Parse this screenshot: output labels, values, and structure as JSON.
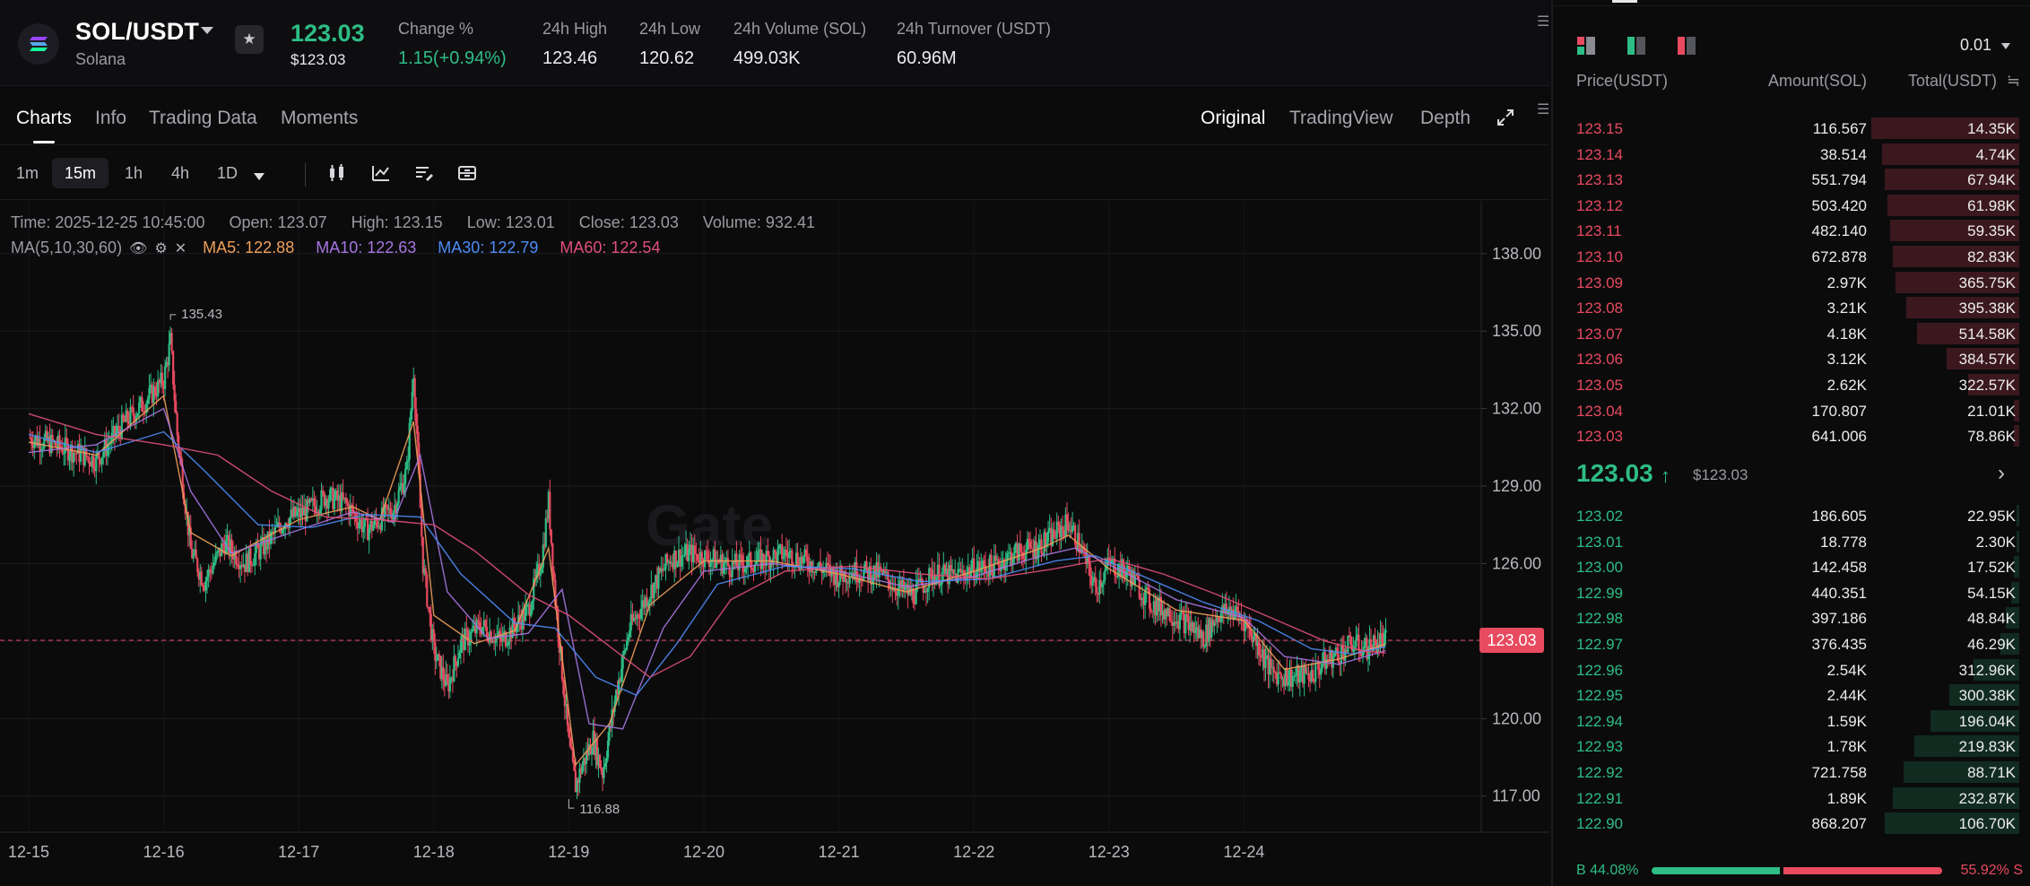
{
  "header": {
    "pair": "SOL/USDT",
    "pair_sub": "Solana",
    "last_price": "123.03",
    "last_price_usd": "$123.03",
    "stats": [
      {
        "label": "Change %",
        "value": "1.15(+0.94%)",
        "positive": true
      },
      {
        "label": "24h High",
        "value": "123.46"
      },
      {
        "label": "24h Low",
        "value": "120.62"
      },
      {
        "label": "24h Volume (SOL)",
        "value": "499.03K"
      },
      {
        "label": "24h Turnover (USDT)",
        "value": "60.96M"
      }
    ]
  },
  "tabs": {
    "left": [
      "Charts",
      "Info",
      "Trading Data",
      "Moments"
    ],
    "right": [
      "Original",
      "TradingView",
      "Depth"
    ],
    "active_left": "Charts",
    "active_right": "Original"
  },
  "toolbar": {
    "timeframes": [
      "1m",
      "15m",
      "1h",
      "4h",
      "1D"
    ],
    "active": "15m"
  },
  "chart_info": {
    "time": "Time: 2025-12-25 10:45:00",
    "open": "Open: 123.07",
    "high": "High: 123.15",
    "low": "Low: 123.01",
    "close": "Close: 123.03",
    "volume": "Volume: 932.41",
    "ma_label": "MA(5,10,30,60)",
    "ma5": "MA5: 122.88",
    "ma10": "MA10: 122.63",
    "ma30": "MA30: 122.79",
    "ma60": "MA60: 122.54",
    "high_marker": "135.43",
    "low_marker": "116.88",
    "current_price_tag": "123.03"
  },
  "colors": {
    "up": "#2ebd85",
    "down": "#e84a5f",
    "ma5": "#f0a05a",
    "ma10": "#a676e0",
    "ma30": "#4e8cf6",
    "ma60": "#e0507a"
  },
  "chart_data": {
    "type": "line",
    "x": [
      "12-15",
      "12-16",
      "12-17",
      "12-18",
      "12-19",
      "12-20",
      "12-21",
      "12-22",
      "12-23",
      "12-24"
    ],
    "ylim": [
      115.6,
      139.0
    ],
    "yticks": [
      "138.00",
      "135.00",
      "132.00",
      "129.00",
      "126.00",
      "123.00",
      "120.00",
      "117.00"
    ],
    "ytick_values": [
      138,
      135,
      132,
      129,
      126,
      123,
      120,
      117
    ],
    "current_price": 123.03,
    "series": [
      {
        "name": "Price",
        "values": [
          [
            0.0,
            130.9
          ],
          [
            0.25,
            130.5
          ],
          [
            0.5,
            130.0
          ],
          [
            0.7,
            131.4
          ],
          [
            0.85,
            132.2
          ],
          [
            1.0,
            133.1
          ],
          [
            1.05,
            134.6
          ],
          [
            1.1,
            131.0
          ],
          [
            1.2,
            126.5
          ],
          [
            1.3,
            125.3
          ],
          [
            1.45,
            126.8
          ],
          [
            1.6,
            126.0
          ],
          [
            1.75,
            126.7
          ],
          [
            1.9,
            127.7
          ],
          [
            2.05,
            128.0
          ],
          [
            2.2,
            128.6
          ],
          [
            2.35,
            128.3
          ],
          [
            2.5,
            127.3
          ],
          [
            2.7,
            128.1
          ],
          [
            2.8,
            129.6
          ],
          [
            2.85,
            133.5
          ],
          [
            2.92,
            126.0
          ],
          [
            3.0,
            122.6
          ],
          [
            3.1,
            121.2
          ],
          [
            3.2,
            122.9
          ],
          [
            3.35,
            123.6
          ],
          [
            3.5,
            123.0
          ],
          [
            3.7,
            124.2
          ],
          [
            3.8,
            126.2
          ],
          [
            3.85,
            128.4
          ],
          [
            3.9,
            124.6
          ],
          [
            4.0,
            119.0
          ],
          [
            4.05,
            117.4
          ],
          [
            4.1,
            118.2
          ],
          [
            4.18,
            119.2
          ],
          [
            4.25,
            117.9
          ],
          [
            4.35,
            121.0
          ],
          [
            4.45,
            123.5
          ],
          [
            4.6,
            124.9
          ],
          [
            4.75,
            126.2
          ],
          [
            4.9,
            126.4
          ],
          [
            5.05,
            126.2
          ],
          [
            5.2,
            125.9
          ],
          [
            5.4,
            126.1
          ],
          [
            5.6,
            126.4
          ],
          [
            5.8,
            126.0
          ],
          [
            6.0,
            125.5
          ],
          [
            6.1,
            125.7
          ],
          [
            6.3,
            125.6
          ],
          [
            6.45,
            125.0
          ],
          [
            6.55,
            124.8
          ],
          [
            6.7,
            125.6
          ],
          [
            6.85,
            125.5
          ],
          [
            7.0,
            125.8
          ],
          [
            7.15,
            125.9
          ],
          [
            7.3,
            126.4
          ],
          [
            7.45,
            126.6
          ],
          [
            7.55,
            126.9
          ],
          [
            7.7,
            127.6
          ],
          [
            7.8,
            126.5
          ],
          [
            7.9,
            125.0
          ],
          [
            8.0,
            126.0
          ],
          [
            8.15,
            125.6
          ],
          [
            8.3,
            124.5
          ],
          [
            8.45,
            124.1
          ],
          [
            8.6,
            123.6
          ],
          [
            8.7,
            123.1
          ],
          [
            8.8,
            124.0
          ],
          [
            8.9,
            124.2
          ],
          [
            9.0,
            123.8
          ],
          [
            9.1,
            122.9
          ],
          [
            9.2,
            121.8
          ],
          [
            9.35,
            121.6
          ],
          [
            9.5,
            121.7
          ],
          [
            9.6,
            122.2
          ],
          [
            9.7,
            122.5
          ],
          [
            9.8,
            122.9
          ],
          [
            9.9,
            122.7
          ],
          [
            10.0,
            123.0
          ],
          [
            10.05,
            123.03
          ]
        ]
      },
      {
        "name": "MA5",
        "values": [
          [
            0.0,
            130.7
          ],
          [
            0.5,
            130.2
          ],
          [
            1.0,
            132.5
          ],
          [
            1.2,
            127.2
          ],
          [
            1.5,
            126.3
          ],
          [
            2.0,
            127.7
          ],
          [
            2.4,
            128.2
          ],
          [
            2.6,
            127.7
          ],
          [
            2.85,
            131.5
          ],
          [
            3.0,
            124.0
          ],
          [
            3.3,
            122.9
          ],
          [
            3.6,
            123.4
          ],
          [
            3.85,
            126.6
          ],
          [
            4.05,
            118.2
          ],
          [
            4.3,
            119.8
          ],
          [
            4.6,
            124.4
          ],
          [
            5.0,
            126.1
          ],
          [
            5.5,
            126.1
          ],
          [
            6.0,
            125.6
          ],
          [
            6.5,
            124.9
          ],
          [
            7.0,
            125.7
          ],
          [
            7.5,
            126.6
          ],
          [
            7.7,
            127.1
          ],
          [
            8.0,
            125.8
          ],
          [
            8.5,
            124.2
          ],
          [
            9.0,
            123.8
          ],
          [
            9.3,
            121.9
          ],
          [
            9.7,
            122.3
          ],
          [
            10.05,
            122.88
          ]
        ]
      },
      {
        "name": "MA10",
        "values": [
          [
            0.0,
            130.3
          ],
          [
            0.5,
            130.6
          ],
          [
            1.0,
            132.0
          ],
          [
            1.2,
            128.8
          ],
          [
            1.5,
            126.4
          ],
          [
            2.0,
            127.3
          ],
          [
            2.4,
            128.0
          ],
          [
            2.7,
            127.6
          ],
          [
            2.9,
            130.2
          ],
          [
            3.1,
            124.9
          ],
          [
            3.4,
            123.1
          ],
          [
            3.7,
            123.3
          ],
          [
            3.95,
            125.0
          ],
          [
            4.15,
            119.8
          ],
          [
            4.4,
            119.6
          ],
          [
            4.7,
            123.5
          ],
          [
            5.0,
            125.7
          ],
          [
            5.5,
            126.0
          ],
          [
            6.0,
            125.7
          ],
          [
            6.5,
            125.1
          ],
          [
            7.0,
            125.5
          ],
          [
            7.5,
            126.3
          ],
          [
            7.75,
            126.6
          ],
          [
            8.1,
            125.7
          ],
          [
            8.5,
            124.6
          ],
          [
            9.0,
            123.9
          ],
          [
            9.3,
            122.4
          ],
          [
            9.7,
            122.1
          ],
          [
            10.05,
            122.63
          ]
        ]
      },
      {
        "name": "MA30",
        "values": [
          [
            0.0,
            131.0
          ],
          [
            0.5,
            130.3
          ],
          [
            1.0,
            131.1
          ],
          [
            1.3,
            129.6
          ],
          [
            1.7,
            127.5
          ],
          [
            2.1,
            127.4
          ],
          [
            2.5,
            127.9
          ],
          [
            2.9,
            127.8
          ],
          [
            3.2,
            125.6
          ],
          [
            3.6,
            123.7
          ],
          [
            3.9,
            123.5
          ],
          [
            4.2,
            121.6
          ],
          [
            4.5,
            120.9
          ],
          [
            4.8,
            122.9
          ],
          [
            5.1,
            125.2
          ],
          [
            5.6,
            125.9
          ],
          [
            6.1,
            125.8
          ],
          [
            6.6,
            125.3
          ],
          [
            7.1,
            125.4
          ],
          [
            7.6,
            126.1
          ],
          [
            7.9,
            126.3
          ],
          [
            8.3,
            125.4
          ],
          [
            8.7,
            124.5
          ],
          [
            9.1,
            123.8
          ],
          [
            9.5,
            122.7
          ],
          [
            9.8,
            122.5
          ],
          [
            10.05,
            122.79
          ]
        ]
      },
      {
        "name": "MA60",
        "values": [
          [
            0.0,
            131.8
          ],
          [
            0.5,
            131.0
          ],
          [
            1.0,
            130.6
          ],
          [
            1.4,
            130.2
          ],
          [
            1.8,
            128.8
          ],
          [
            2.2,
            127.8
          ],
          [
            2.6,
            127.7
          ],
          [
            3.0,
            127.5
          ],
          [
            3.3,
            126.5
          ],
          [
            3.7,
            124.8
          ],
          [
            4.0,
            124.0
          ],
          [
            4.3,
            122.8
          ],
          [
            4.6,
            121.6
          ],
          [
            4.9,
            122.4
          ],
          [
            5.2,
            124.6
          ],
          [
            5.6,
            125.7
          ],
          [
            6.1,
            125.9
          ],
          [
            6.6,
            125.6
          ],
          [
            7.1,
            125.4
          ],
          [
            7.6,
            125.8
          ],
          [
            8.0,
            126.2
          ],
          [
            8.4,
            125.6
          ],
          [
            8.8,
            124.8
          ],
          [
            9.2,
            123.9
          ],
          [
            9.6,
            123.0
          ],
          [
            9.9,
            122.6
          ],
          [
            10.05,
            122.54
          ]
        ]
      }
    ],
    "high_point": [
      1.05,
      135.43
    ],
    "low_point": [
      4.0,
      116.88
    ]
  },
  "orderbook": {
    "precision": "0.01",
    "headers": {
      "price": "Price(USDT)",
      "amount": "Amount(SOL)",
      "total": "Total(USDT)"
    },
    "asks": [
      {
        "price": "123.15",
        "amount": "116.567",
        "total": "14.35K",
        "depth": 0.55
      },
      {
        "price": "123.14",
        "amount": "38.514",
        "total": "4.74K",
        "depth": 0.51
      },
      {
        "price": "123.13",
        "amount": "551.794",
        "total": "67.94K",
        "depth": 0.5
      },
      {
        "price": "123.12",
        "amount": "503.420",
        "total": "61.98K",
        "depth": 0.49
      },
      {
        "price": "123.11",
        "amount": "482.140",
        "total": "59.35K",
        "depth": 0.48
      },
      {
        "price": "123.10",
        "amount": "672.878",
        "total": "82.83K",
        "depth": 0.47
      },
      {
        "price": "123.09",
        "amount": "2.97K",
        "total": "365.75K",
        "depth": 0.46
      },
      {
        "price": "123.08",
        "amount": "3.21K",
        "total": "395.38K",
        "depth": 0.42
      },
      {
        "price": "123.07",
        "amount": "4.18K",
        "total": "514.58K",
        "depth": 0.38
      },
      {
        "price": "123.06",
        "amount": "3.12K",
        "total": "384.57K",
        "depth": 0.27
      },
      {
        "price": "123.05",
        "amount": "2.62K",
        "total": "322.57K",
        "depth": 0.19
      },
      {
        "price": "123.04",
        "amount": "170.807",
        "total": "21.01K",
        "depth": 0.02
      },
      {
        "price": "123.03",
        "amount": "641.006",
        "total": "78.86K",
        "depth": 0.02
      }
    ],
    "mid_price": "123.03",
    "mid_usd": "$123.03",
    "bids": [
      {
        "price": "123.02",
        "amount": "186.605",
        "total": "22.95K",
        "depth": 0.01
      },
      {
        "price": "123.01",
        "amount": "18.778",
        "total": "2.30K",
        "depth": 0.01
      },
      {
        "price": "123.00",
        "amount": "142.458",
        "total": "17.52K",
        "depth": 0.02
      },
      {
        "price": "122.99",
        "amount": "440.351",
        "total": "54.15K",
        "depth": 0.03
      },
      {
        "price": "122.98",
        "amount": "397.186",
        "total": "48.84K",
        "depth": 0.05
      },
      {
        "price": "122.97",
        "amount": "376.435",
        "total": "46.29K",
        "depth": 0.07
      },
      {
        "price": "122.96",
        "amount": "2.54K",
        "total": "312.96K",
        "depth": 0.17
      },
      {
        "price": "122.95",
        "amount": "2.44K",
        "total": "300.38K",
        "depth": 0.26
      },
      {
        "price": "122.94",
        "amount": "1.59K",
        "total": "196.04K",
        "depth": 0.33
      },
      {
        "price": "122.93",
        "amount": "1.78K",
        "total": "219.83K",
        "depth": 0.39
      },
      {
        "price": "122.92",
        "amount": "721.758",
        "total": "88.71K",
        "depth": 0.43
      },
      {
        "price": "122.91",
        "amount": "1.89K",
        "total": "232.87K",
        "depth": 0.47
      },
      {
        "price": "122.90",
        "amount": "868.207",
        "total": "106.70K",
        "depth": 0.5
      }
    ],
    "buy_ratio": "B 44.08%",
    "sell_ratio": "55.92% S",
    "buy_fraction": 0.4408
  }
}
